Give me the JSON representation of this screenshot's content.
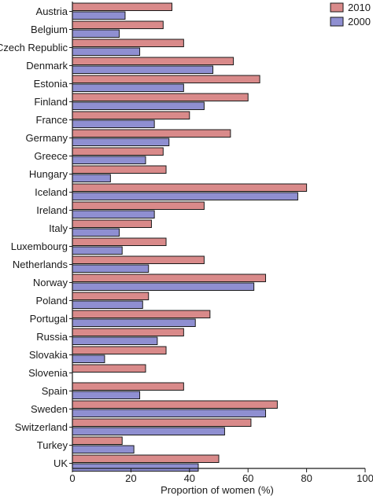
{
  "chart_data": {
    "type": "bar",
    "orientation": "horizontal",
    "categories": [
      "Austria",
      "Belgium",
      "Czech Republic",
      "Denmark",
      "Estonia",
      "Finland",
      "France",
      "Germany",
      "Greece",
      "Hungary",
      "Iceland",
      "Ireland",
      "Italy",
      "Luxembourg",
      "Netherlands",
      "Norway",
      "Poland",
      "Portugal",
      "Russia",
      "Slovakia",
      "Slovenia",
      "Spain",
      "Sweden",
      "Switzerland",
      "Turkey",
      "UK"
    ],
    "series": [
      {
        "name": "2010",
        "color": "#d98a8a",
        "values": [
          34,
          31,
          38,
          55,
          64,
          60,
          40,
          54,
          31,
          32,
          80,
          45,
          27,
          32,
          45,
          66,
          26,
          47,
          38,
          32,
          25,
          38,
          70,
          61,
          17,
          50
        ]
      },
      {
        "name": "2000",
        "color": "#8f8fd1",
        "values": [
          18,
          16,
          23,
          48,
          38,
          45,
          28,
          33,
          25,
          13,
          77,
          28,
          16,
          17,
          26,
          62,
          24,
          42,
          29,
          11,
          null,
          23,
          66,
          52,
          21,
          43
        ]
      }
    ],
    "xlabel": "Proportion of women (%)",
    "ylabel": "",
    "title": "",
    "xlim": [
      0,
      100
    ],
    "xticks": [
      0,
      20,
      40,
      60,
      80,
      100
    ],
    "grid": false,
    "legend_position": "top-right"
  }
}
